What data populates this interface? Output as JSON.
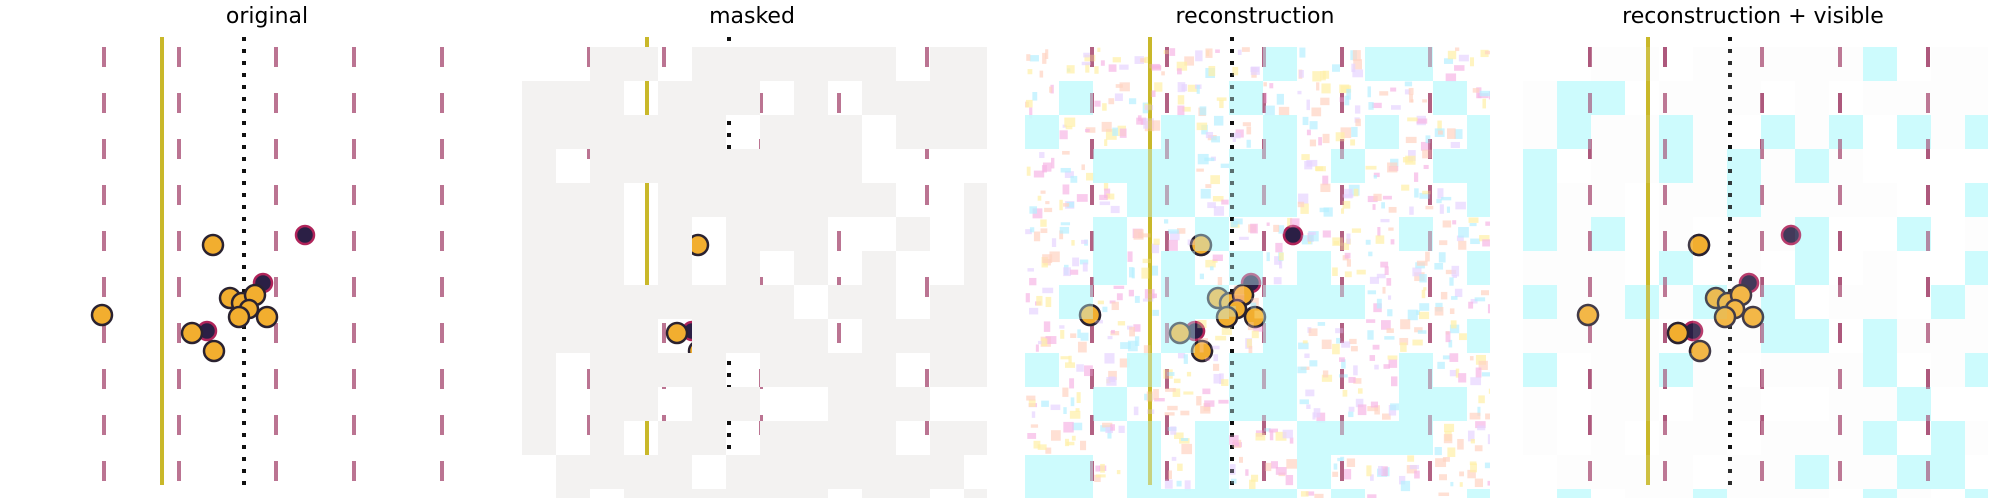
{
  "panels": [
    {
      "id": "original",
      "title": "original"
    },
    {
      "id": "masked",
      "title": "masked"
    },
    {
      "id": "reconstruction",
      "title": "reconstruction"
    },
    {
      "id": "reconstruction-visible",
      "title": "reconstruction + visible"
    }
  ],
  "colors": {
    "background": "#ffffff",
    "mask_gray": "#f3f2f1",
    "cyan_patch": "#c8fbfd",
    "yellow_line": "#c9b82a",
    "dashed_line": "#a4466e",
    "dotted_line": "#111111",
    "marker_fill": "#f2ae2f",
    "marker_edge": "#2a2230",
    "marker_dark": "#2b1f45"
  }
}
